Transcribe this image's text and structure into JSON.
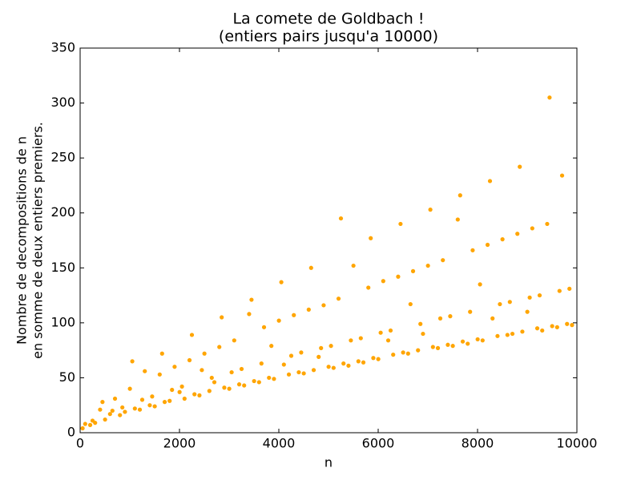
{
  "chart_data": {
    "type": "scatter",
    "title": "La comete de Goldbach !",
    "subtitle": "(entiers pairs jusqu'a 10000)",
    "xlabel": "n",
    "ylabel": [
      "Nombre de decompositions de n",
      "en somme de deux entiers premiers."
    ],
    "color": "#ffa500",
    "x": [
      102,
      202,
      302,
      402,
      502,
      602,
      702,
      802,
      902,
      1002,
      1102,
      1202,
      1302,
      1402,
      1502,
      1602,
      1702,
      1802,
      1902,
      2002,
      2102,
      2202,
      2302,
      2402,
      2502,
      2602,
      2702,
      2802,
      2902,
      3002,
      3102,
      3202,
      3302,
      3402,
      3502,
      3602,
      3702,
      3802,
      3902,
      4002,
      4102,
      4202,
      4302,
      4402,
      4502,
      4602,
      4702,
      4802,
      4902,
      5002,
      5102,
      5202,
      5302,
      5402,
      5502,
      5602,
      5702,
      5802,
      5902,
      6002,
      6102,
      6202,
      6302,
      6402,
      6502,
      6602,
      6702,
      6802,
      6902,
      7002,
      7102,
      7202,
      7302,
      7402,
      7502,
      7602,
      7702,
      7802,
      7902,
      8002,
      8102,
      8202,
      8302,
      8402,
      8502,
      8602,
      8702,
      8802,
      8902,
      9002,
      9102,
      9202,
      9302,
      9402,
      9502,
      9602,
      9702,
      9802,
      9902,
      50,
      250,
      450,
      650,
      850,
      1050,
      1250,
      1450,
      1650,
      1850,
      2050,
      2250,
      2450,
      2650,
      2850,
      3050,
      3250,
      3450,
      3650,
      3850,
      4050,
      4250,
      4450,
      4650,
      4850,
      5050,
      5250,
      5450,
      5650,
      5850,
      6050,
      6250,
      6450,
      6650,
      6850,
      7050,
      7250,
      7450,
      7650,
      7850,
      8050,
      8250,
      8450,
      8650,
      8850,
      9050,
      9250,
      9450,
      9650,
      9850
    ],
    "values": [
      8,
      7,
      9,
      21,
      12,
      17,
      31,
      16,
      19,
      40,
      22,
      21,
      56,
      25,
      24,
      53,
      28,
      29,
      60,
      37,
      31,
      66,
      35,
      34,
      72,
      38,
      46,
      78,
      41,
      40,
      84,
      44,
      43,
      108,
      47,
      46,
      96,
      50,
      49,
      102,
      62,
      53,
      107,
      55,
      54,
      112,
      57,
      69,
      116,
      60,
      59,
      122,
      63,
      61,
      152,
      65,
      64,
      132,
      68,
      67,
      138,
      84,
      71,
      142,
      73,
      72,
      147,
      75,
      90,
      152,
      78,
      77,
      157,
      80,
      79,
      194,
      83,
      81,
      166,
      85,
      84,
      171,
      104,
      88,
      176,
      89,
      90,
      181,
      92,
      110,
      186,
      95,
      93,
      190,
      97,
      96,
      234,
      99,
      98,
      4,
      11,
      28,
      20,
      23,
      65,
      30,
      33,
      72,
      39,
      42,
      89,
      57,
      50,
      105,
      55,
      58,
      121,
      63,
      79,
      137,
      70,
      73,
      150,
      77,
      79,
      195,
      84,
      86,
      177,
      91,
      93,
      190,
      117,
      99,
      203,
      104,
      106,
      216,
      110,
      135,
      229,
      117,
      119,
      242,
      123,
      125,
      305,
      129,
      131
    ],
    "xlim": [
      0,
      10000
    ],
    "xticks": [
      0,
      2000,
      4000,
      6000,
      8000,
      10000
    ],
    "ylim": [
      0,
      350
    ],
    "yticks": [
      0,
      50,
      100,
      150,
      200,
      250,
      300,
      350
    ]
  }
}
